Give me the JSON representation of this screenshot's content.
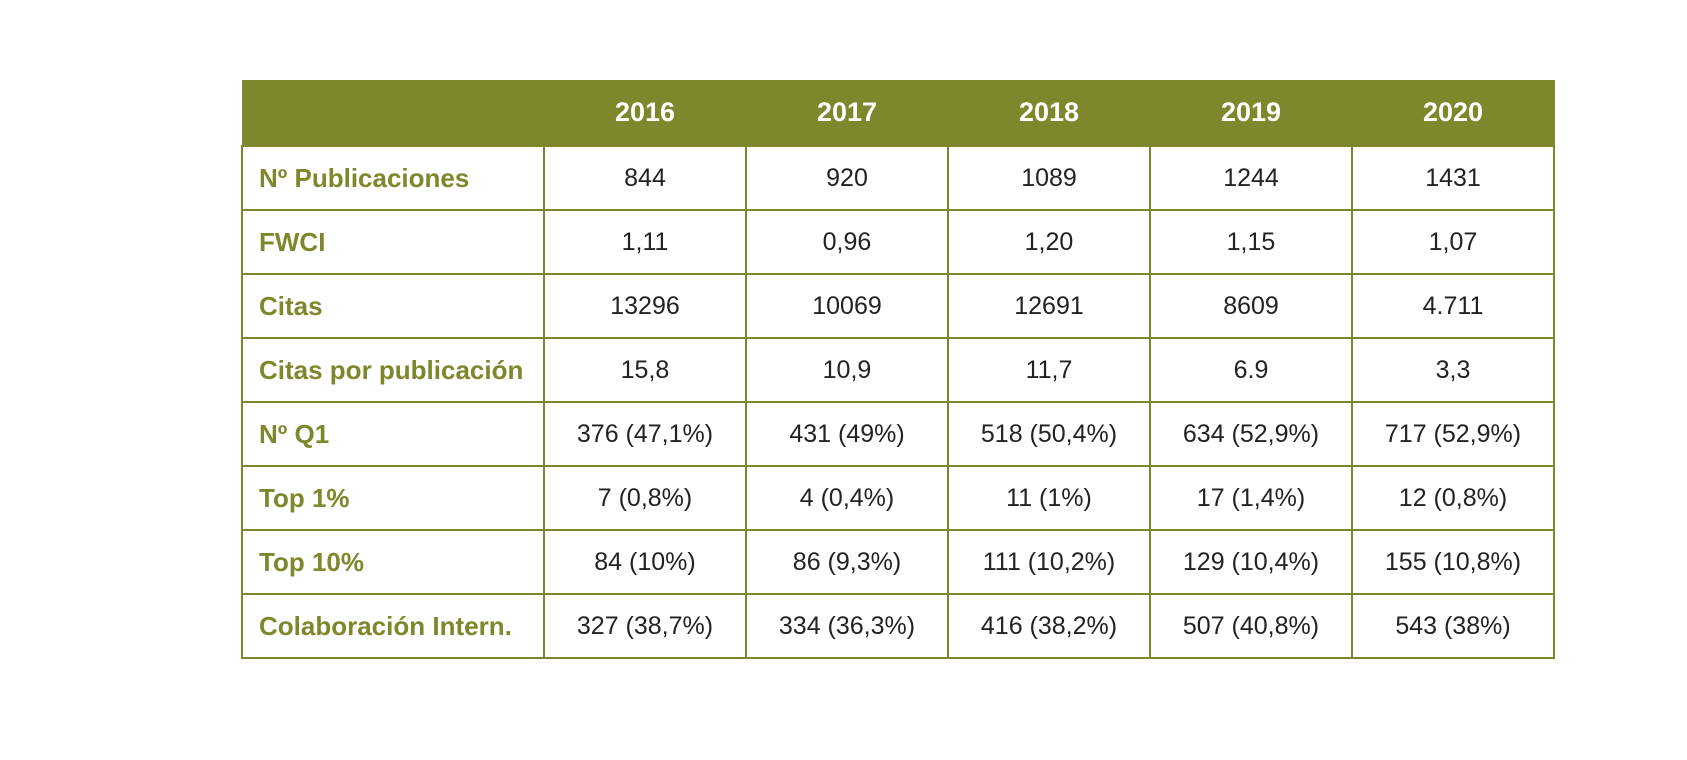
{
  "table": {
    "header": [
      "",
      "2016",
      "2017",
      "2018",
      "2019",
      "2020"
    ],
    "rows": [
      {
        "label": "Nº Publicaciones",
        "values": [
          "844",
          "920",
          "1089",
          "1244",
          "1431"
        ]
      },
      {
        "label": "FWCI",
        "values": [
          "1,11",
          "0,96",
          "1,20",
          "1,15",
          "1,07"
        ]
      },
      {
        "label": "Citas",
        "values": [
          "13296",
          "10069",
          "12691",
          "8609",
          "4.711"
        ]
      },
      {
        "label": "Citas por publicación",
        "values": [
          "15,8",
          "10,9",
          "11,7",
          "6.9",
          "3,3"
        ]
      },
      {
        "label": "Nº Q1",
        "values": [
          "376 (47,1%)",
          "431 (49%)",
          "518 (50,4%)",
          "634 (52,9%)",
          "717 (52,9%)"
        ]
      },
      {
        "label": "Top 1%",
        "values": [
          "7 (0,8%)",
          "4 (0,4%)",
          "11 (1%)",
          "17 (1,4%)",
          "12 (0,8%)"
        ]
      },
      {
        "label": "Top 10%",
        "values": [
          "84 (10%)",
          "86 (9,3%)",
          "111 (10,2%)",
          "129 (10,4%)",
          "155 (10,8%)"
        ]
      },
      {
        "label": "Colaboración Intern.",
        "values": [
          "327 (38,7%)",
          "334 (36,3%)",
          "416 (38,2%)",
          "507 (40,8%)",
          "543 (38%)"
        ]
      }
    ]
  },
  "colors": {
    "accent": "#7e872b",
    "header_text": "#ffffff",
    "cell_text": "#222222"
  }
}
